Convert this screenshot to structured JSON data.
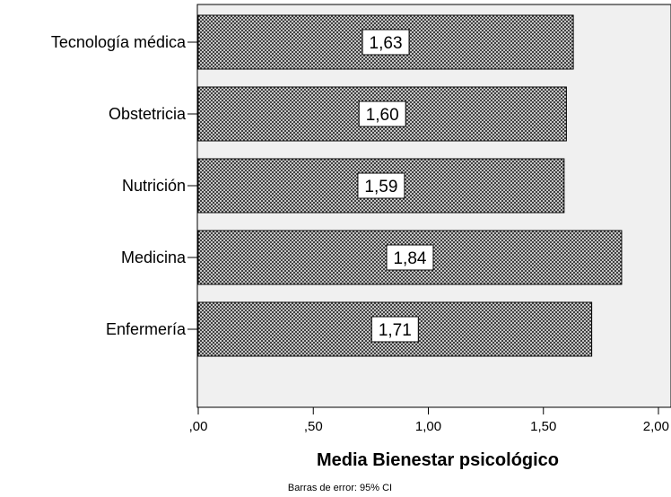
{
  "chart_data": {
    "type": "bar",
    "orientation": "horizontal",
    "categories": [
      "Tecnología médica",
      "Obstetricia",
      "Nutrición",
      "Medicina",
      "Enfermería"
    ],
    "values": [
      1.63,
      1.6,
      1.59,
      1.84,
      1.71
    ],
    "data_labels": [
      "1,63",
      "1,60",
      "1,59",
      "1,84",
      "1,71"
    ],
    "xlabel": "Media Bienestar psicológico",
    "ylabel": "",
    "xlim": [
      0,
      2.0
    ],
    "x_ticks": [
      0,
      0.5,
      1.0,
      1.5,
      2.0
    ],
    "x_tick_labels": [
      ",00",
      ",50",
      "1,00",
      "1,50",
      "2,00"
    ],
    "footnote": "Barras de error: 95% CI",
    "bar_pattern": "crosshatch",
    "plot_background": "#f0f0f0",
    "bar_fill": "#d0d0d0",
    "grid": false
  }
}
